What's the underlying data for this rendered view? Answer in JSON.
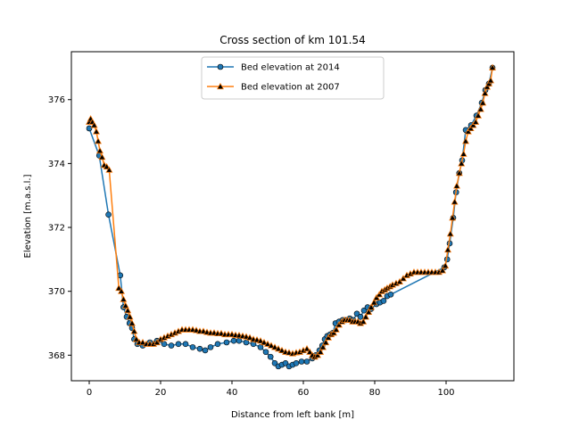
{
  "chart_data": {
    "type": "line",
    "title": "Cross section of km 101.54",
    "xlabel": "Distance from left bank [m]",
    "ylabel": "Elevation [m.a.s.l.]",
    "xlim": [
      -5,
      119
    ],
    "ylim": [
      367.2,
      377.5
    ],
    "xticks": [
      0,
      20,
      40,
      60,
      80,
      100
    ],
    "yticks": [
      368,
      370,
      372,
      374,
      376
    ],
    "grid": false,
    "legend_position": "upper-center",
    "series": [
      {
        "name": "Bed elevation at 2014",
        "color": "#1f77b4",
        "marker": "circle",
        "points": [
          [
            0.0,
            375.1
          ],
          [
            2.8,
            374.25
          ],
          [
            5.4,
            372.4
          ],
          [
            8.7,
            370.5
          ],
          [
            9.6,
            369.5
          ],
          [
            10.5,
            369.2
          ],
          [
            11.3,
            369.0
          ],
          [
            12.0,
            368.85
          ],
          [
            12.6,
            368.5
          ],
          [
            13.5,
            368.35
          ],
          [
            15.0,
            368.3
          ],
          [
            17.0,
            368.4
          ],
          [
            19.0,
            368.45
          ],
          [
            21.0,
            368.35
          ],
          [
            23.0,
            368.3
          ],
          [
            25.0,
            368.35
          ],
          [
            27.0,
            368.35
          ],
          [
            29.0,
            368.25
          ],
          [
            31.0,
            368.2
          ],
          [
            32.5,
            368.15
          ],
          [
            34.0,
            368.25
          ],
          [
            36.0,
            368.35
          ],
          [
            38.5,
            368.4
          ],
          [
            40.5,
            368.45
          ],
          [
            42.0,
            368.45
          ],
          [
            44.0,
            368.4
          ],
          [
            46.0,
            368.35
          ],
          [
            48.0,
            368.25
          ],
          [
            49.5,
            368.1
          ],
          [
            50.8,
            367.95
          ],
          [
            52.0,
            367.75
          ],
          [
            53.0,
            367.65
          ],
          [
            54.0,
            367.7
          ],
          [
            55.0,
            367.75
          ],
          [
            56.0,
            367.65
          ],
          [
            57.0,
            367.7
          ],
          [
            58.0,
            367.75
          ],
          [
            59.5,
            367.8
          ],
          [
            61.0,
            367.8
          ],
          [
            62.5,
            367.9
          ],
          [
            63.5,
            368.0
          ],
          [
            64.5,
            368.15
          ],
          [
            65.3,
            368.3
          ],
          [
            66.0,
            368.5
          ],
          [
            66.7,
            368.6
          ],
          [
            67.5,
            368.65
          ],
          [
            68.3,
            368.7
          ],
          [
            69.0,
            369.0
          ],
          [
            70.0,
            369.05
          ],
          [
            71.0,
            369.1
          ],
          [
            72.0,
            369.1
          ],
          [
            73.0,
            369.15
          ],
          [
            74.0,
            369.1
          ],
          [
            75.0,
            369.3
          ],
          [
            76.0,
            369.2
          ],
          [
            77.0,
            369.4
          ],
          [
            78.0,
            369.5
          ],
          [
            79.0,
            369.45
          ],
          [
            80.5,
            369.6
          ],
          [
            81.5,
            369.65
          ],
          [
            82.5,
            369.7
          ],
          [
            83.5,
            369.85
          ],
          [
            84.5,
            369.9
          ],
          [
            99.5,
            370.75
          ],
          [
            100.3,
            371.0
          ],
          [
            101.0,
            371.5
          ],
          [
            102.0,
            372.3
          ],
          [
            102.8,
            373.1
          ],
          [
            103.7,
            373.7
          ],
          [
            104.5,
            374.1
          ],
          [
            105.5,
            375.05
          ],
          [
            107.0,
            375.2
          ],
          [
            108.5,
            375.5
          ],
          [
            110.0,
            375.9
          ],
          [
            111.0,
            376.3
          ],
          [
            112.0,
            376.5
          ],
          [
            113.0,
            377.0
          ]
        ]
      },
      {
        "name": "Bed elevation at 2007",
        "color": "#ff7f0e",
        "marker": "triangle",
        "points": [
          [
            0.0,
            375.3
          ],
          [
            0.4,
            375.4
          ],
          [
            0.9,
            375.3
          ],
          [
            1.4,
            375.2
          ],
          [
            2.0,
            375.0
          ],
          [
            2.5,
            374.7
          ],
          [
            3.0,
            374.4
          ],
          [
            3.6,
            374.2
          ],
          [
            4.2,
            373.95
          ],
          [
            4.9,
            373.9
          ],
          [
            5.6,
            373.8
          ],
          [
            8.3,
            370.1
          ],
          [
            9.0,
            370.0
          ],
          [
            9.6,
            369.75
          ],
          [
            10.2,
            369.55
          ],
          [
            10.8,
            369.4
          ],
          [
            11.4,
            369.2
          ],
          [
            12.0,
            369.0
          ],
          [
            12.6,
            368.75
          ],
          [
            13.2,
            368.5
          ],
          [
            14.0,
            368.4
          ],
          [
            15.0,
            368.4
          ],
          [
            16.0,
            368.35
          ],
          [
            17.0,
            368.35
          ],
          [
            18.0,
            368.35
          ],
          [
            19.0,
            368.4
          ],
          [
            20.0,
            368.5
          ],
          [
            21.0,
            368.55
          ],
          [
            22.0,
            368.6
          ],
          [
            23.0,
            368.65
          ],
          [
            24.0,
            368.7
          ],
          [
            25.0,
            368.75
          ],
          [
            26.0,
            368.8
          ],
          [
            27.0,
            368.8
          ],
          [
            28.0,
            368.8
          ],
          [
            29.0,
            368.8
          ],
          [
            30.0,
            368.78
          ],
          [
            31.0,
            368.75
          ],
          [
            32.0,
            368.75
          ],
          [
            33.0,
            368.72
          ],
          [
            34.0,
            368.7
          ],
          [
            35.0,
            368.7
          ],
          [
            36.0,
            368.68
          ],
          [
            37.0,
            368.68
          ],
          [
            38.0,
            368.65
          ],
          [
            39.0,
            368.65
          ],
          [
            40.0,
            368.65
          ],
          [
            41.0,
            368.63
          ],
          [
            42.0,
            368.62
          ],
          [
            43.0,
            368.6
          ],
          [
            44.0,
            368.58
          ],
          [
            45.0,
            368.55
          ],
          [
            46.0,
            368.5
          ],
          [
            47.0,
            368.48
          ],
          [
            48.0,
            368.45
          ],
          [
            49.0,
            368.4
          ],
          [
            50.0,
            368.35
          ],
          [
            51.0,
            368.3
          ],
          [
            52.0,
            368.25
          ],
          [
            53.0,
            368.2
          ],
          [
            54.0,
            368.15
          ],
          [
            55.0,
            368.1
          ],
          [
            56.0,
            368.08
          ],
          [
            57.0,
            368.05
          ],
          [
            58.0,
            368.08
          ],
          [
            59.0,
            368.1
          ],
          [
            60.0,
            368.15
          ],
          [
            61.0,
            368.2
          ],
          [
            61.8,
            368.1
          ],
          [
            62.5,
            368.0
          ],
          [
            63.2,
            367.95
          ],
          [
            64.0,
            368.0
          ],
          [
            64.8,
            368.1
          ],
          [
            65.5,
            368.25
          ],
          [
            66.3,
            368.4
          ],
          [
            67.0,
            368.55
          ],
          [
            67.8,
            368.65
          ],
          [
            68.5,
            368.7
          ],
          [
            69.2,
            368.8
          ],
          [
            70.0,
            368.95
          ],
          [
            70.8,
            369.05
          ],
          [
            71.5,
            369.1
          ],
          [
            72.3,
            369.1
          ],
          [
            73.0,
            369.1
          ],
          [
            73.8,
            369.05
          ],
          [
            74.5,
            369.05
          ],
          [
            75.3,
            369.05
          ],
          [
            76.0,
            369.0
          ],
          [
            76.8,
            369.05
          ],
          [
            77.5,
            369.2
          ],
          [
            78.3,
            369.35
          ],
          [
            79.0,
            369.5
          ],
          [
            79.8,
            369.65
          ],
          [
            80.5,
            369.8
          ],
          [
            81.3,
            369.9
          ],
          [
            82.0,
            370.0
          ],
          [
            82.8,
            370.05
          ],
          [
            83.5,
            370.1
          ],
          [
            84.3,
            370.15
          ],
          [
            85.0,
            370.2
          ],
          [
            86.0,
            370.25
          ],
          [
            87.0,
            370.3
          ],
          [
            88.0,
            370.4
          ],
          [
            89.0,
            370.5
          ],
          [
            90.0,
            370.55
          ],
          [
            91.0,
            370.6
          ],
          [
            92.0,
            370.6
          ],
          [
            93.0,
            370.6
          ],
          [
            94.0,
            370.6
          ],
          [
            95.0,
            370.6
          ],
          [
            96.0,
            370.6
          ],
          [
            97.0,
            370.6
          ],
          [
            98.0,
            370.6
          ],
          [
            99.0,
            370.65
          ],
          [
            99.8,
            370.8
          ],
          [
            100.5,
            371.3
          ],
          [
            101.2,
            371.8
          ],
          [
            101.8,
            372.3
          ],
          [
            102.4,
            372.8
          ],
          [
            103.0,
            373.3
          ],
          [
            103.7,
            373.7
          ],
          [
            104.3,
            374.0
          ],
          [
            104.9,
            374.3
          ],
          [
            105.5,
            374.7
          ],
          [
            106.2,
            375.0
          ],
          [
            106.9,
            375.1
          ],
          [
            107.6,
            375.2
          ],
          [
            108.3,
            375.3
          ],
          [
            109.0,
            375.5
          ],
          [
            109.7,
            375.7
          ],
          [
            110.3,
            375.9
          ],
          [
            110.9,
            376.2
          ],
          [
            111.5,
            376.4
          ],
          [
            112.0,
            376.5
          ],
          [
            112.5,
            376.6
          ],
          [
            113.0,
            377.0
          ]
        ]
      }
    ]
  }
}
